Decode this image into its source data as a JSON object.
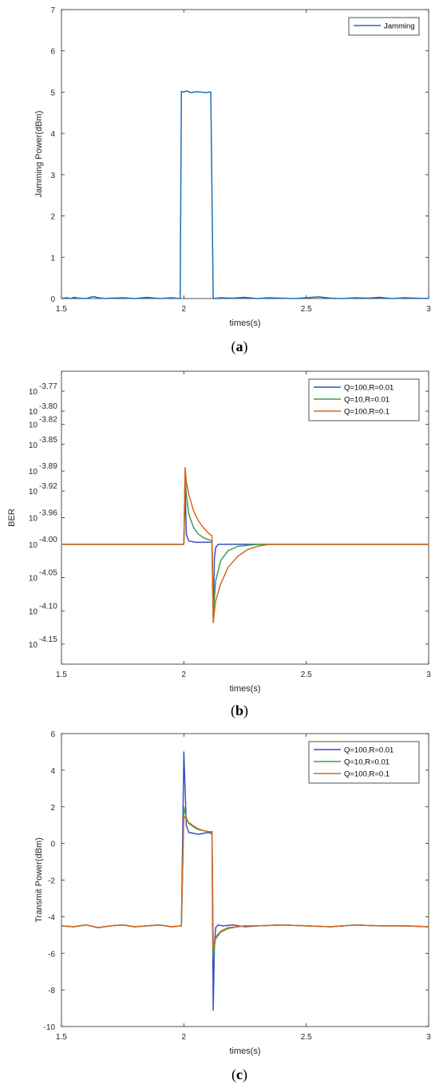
{
  "chart_data": [
    {
      "type": "line",
      "panel_label_paren_open": "(",
      "panel_label_letter": "a",
      "panel_label_paren_close": ")",
      "xlabel": "times(s)",
      "ylabel": "Jamming Power(dBm)",
      "xlim": [
        1.5,
        3
      ],
      "ylim": [
        0,
        7
      ],
      "xticks": [
        1.5,
        2,
        2.5,
        3
      ],
      "xtick_labels": [
        "1.5",
        "2",
        "2.5",
        "3"
      ],
      "yticks": [
        0,
        1,
        2,
        3,
        4,
        5,
        6,
        7
      ],
      "ytick_labels": [
        "0",
        "1",
        "2",
        "3",
        "4",
        "5",
        "6",
        "7"
      ],
      "legend_position": "top-right",
      "series": [
        {
          "name": "Jamming",
          "color": "#1f6fb4",
          "x": [
            1.5,
            1.52,
            1.54,
            1.55,
            1.57,
            1.6,
            1.63,
            1.65,
            1.68,
            1.7,
            1.75,
            1.8,
            1.85,
            1.9,
            1.95,
            1.985,
            1.99,
            2.0,
            2.01,
            2.03,
            2.05,
            2.07,
            2.09,
            2.1,
            2.11,
            2.12,
            2.15,
            2.2,
            2.25,
            2.3,
            2.35,
            2.4,
            2.45,
            2.5,
            2.55,
            2.6,
            2.65,
            2.7,
            2.75,
            2.8,
            2.85,
            2.9,
            2.95,
            3.0
          ],
          "y": [
            0.0,
            0.02,
            0.0,
            0.03,
            0.01,
            0.0,
            0.05,
            0.02,
            0.0,
            0.01,
            0.02,
            0.0,
            0.03,
            0.0,
            0.02,
            0.0,
            5.02,
            5.0,
            5.03,
            4.99,
            5.01,
            5.0,
            4.99,
            5.0,
            5.0,
            0.0,
            0.02,
            0.01,
            0.03,
            0.0,
            0.02,
            0.01,
            0.0,
            0.02,
            0.04,
            0.01,
            0.0,
            0.02,
            0.01,
            0.03,
            0.0,
            0.02,
            0.01,
            0.0
          ]
        }
      ]
    },
    {
      "type": "line",
      "panel_label_paren_open": "(",
      "panel_label_letter": "b",
      "panel_label_paren_close": ")",
      "xlabel": "times(s)",
      "ylabel": "BER",
      "xlim": [
        1.5,
        3
      ],
      "ylim": [
        -4.18,
        -3.74
      ],
      "ytick_base": "10",
      "xticks": [
        1.5,
        2,
        2.5,
        3
      ],
      "xtick_labels": [
        "1.5",
        "2",
        "2.5",
        "3"
      ],
      "yticks": [
        -3.77,
        -3.8,
        -3.82,
        -3.85,
        -3.89,
        -3.92,
        -3.96,
        -4.0,
        -4.05,
        -4.1,
        -4.15
      ],
      "ytick_labels": [
        "-3.77",
        "-3.80",
        "-3.82",
        "-3.85",
        "-3.89",
        "-3.92",
        "-3.96",
        "-4.00",
        "-4.05",
        "-4.10",
        "-4.15"
      ],
      "legend_position": "top-right",
      "series": [
        {
          "name": "Q=100,R=0.01",
          "color": "#3b4fc4",
          "x": [
            1.5,
            1.6,
            1.7,
            1.8,
            1.9,
            1.99,
            2.0,
            2.005,
            2.01,
            2.02,
            2.05,
            2.08,
            2.11,
            2.115,
            2.12,
            2.125,
            2.13,
            2.14,
            2.16,
            2.2,
            2.3,
            2.5,
            2.7,
            2.9,
            3.0
          ],
          "y": [
            -4.0,
            -4.0,
            -4.0,
            -4.0,
            -4.0,
            -4.0,
            -4.0,
            -3.91,
            -3.985,
            -3.995,
            -3.997,
            -3.997,
            -3.997,
            -3.997,
            -4.11,
            -4.02,
            -4.005,
            -4.0,
            -4.0,
            -4.0,
            -4.0,
            -4.0,
            -4.0,
            -4.0,
            -4.0
          ]
        },
        {
          "name": "Q=10,R=0.01",
          "color": "#3f9e4a",
          "x": [
            1.5,
            1.6,
            1.7,
            1.8,
            1.9,
            1.99,
            2.0,
            2.005,
            2.01,
            2.02,
            2.04,
            2.06,
            2.08,
            2.1,
            2.11,
            2.115,
            2.12,
            2.125,
            2.13,
            2.15,
            2.18,
            2.22,
            2.3,
            2.4,
            2.5,
            2.7,
            2.9,
            3.0
          ],
          "y": [
            -4.0,
            -4.0,
            -4.0,
            -4.0,
            -4.0,
            -4.0,
            -4.0,
            -3.895,
            -3.925,
            -3.955,
            -3.975,
            -3.985,
            -3.99,
            -3.993,
            -3.994,
            -3.994,
            -4.112,
            -4.08,
            -4.055,
            -4.025,
            -4.01,
            -4.003,
            -4.0,
            -4.0,
            -4.0,
            -4.0,
            -4.0,
            -4.0
          ]
        },
        {
          "name": "Q=100,R=0.1",
          "color": "#d9661f",
          "x": [
            1.5,
            1.6,
            1.7,
            1.8,
            1.9,
            1.99,
            2.0,
            2.005,
            2.01,
            2.02,
            2.04,
            2.06,
            2.08,
            2.1,
            2.11,
            2.115,
            2.12,
            2.125,
            2.13,
            2.15,
            2.18,
            2.22,
            2.26,
            2.3,
            2.35,
            2.4,
            2.5,
            2.7,
            2.9,
            3.0
          ],
          "y": [
            -4.0,
            -4.0,
            -4.0,
            -4.0,
            -4.0,
            -4.0,
            -4.0,
            -3.885,
            -3.905,
            -3.925,
            -3.95,
            -3.965,
            -3.975,
            -3.983,
            -3.986,
            -3.987,
            -4.118,
            -4.1,
            -4.085,
            -4.06,
            -4.035,
            -4.018,
            -4.008,
            -4.003,
            -4.0,
            -4.0,
            -4.0,
            -4.0,
            -4.0,
            -4.0
          ]
        }
      ]
    },
    {
      "type": "line",
      "panel_label_paren_open": "(",
      "panel_label_letter": "c",
      "panel_label_paren_close": ")",
      "xlabel": "times(s)",
      "ylabel": "Transmit Power(dBm)",
      "xlim": [
        1.5,
        3
      ],
      "ylim": [
        -10,
        6
      ],
      "xticks": [
        1.5,
        2,
        2.5,
        3
      ],
      "xtick_labels": [
        "1.5",
        "2",
        "2.5",
        "3"
      ],
      "yticks": [
        -10,
        -8,
        -6,
        -4,
        -2,
        0,
        2,
        4,
        6
      ],
      "ytick_labels": [
        "-10",
        "-8",
        "-6",
        "-4",
        "-2",
        "0",
        "2",
        "4",
        "6"
      ],
      "legend_position": "top-right",
      "series": [
        {
          "name": "Q=100,R=0.01",
          "color": "#3b4fc4",
          "x": [
            1.5,
            1.55,
            1.6,
            1.65,
            1.7,
            1.75,
            1.8,
            1.85,
            1.9,
            1.95,
            1.99,
            2.0,
            2.01,
            2.02,
            2.04,
            2.06,
            2.08,
            2.1,
            2.11,
            2.115,
            2.12,
            2.125,
            2.13,
            2.14,
            2.16,
            2.2,
            2.25,
            2.3,
            2.4,
            2.5,
            2.6,
            2.7,
            2.8,
            2.9,
            3.0
          ],
          "y": [
            -4.5,
            -4.55,
            -4.45,
            -4.6,
            -4.5,
            -4.45,
            -4.55,
            -4.5,
            -4.45,
            -4.55,
            -4.5,
            5.0,
            1.0,
            0.6,
            0.55,
            0.5,
            0.55,
            0.6,
            0.55,
            0.6,
            -9.1,
            -5.5,
            -4.6,
            -4.45,
            -4.5,
            -4.45,
            -4.55,
            -4.5,
            -4.45,
            -4.5,
            -4.55,
            -4.45,
            -4.5,
            -4.5,
            -4.55
          ]
        },
        {
          "name": "Q=10,R=0.01",
          "color": "#3f9e4a",
          "x": [
            1.5,
            1.55,
            1.6,
            1.65,
            1.7,
            1.75,
            1.8,
            1.85,
            1.9,
            1.95,
            1.99,
            2.0,
            2.01,
            2.02,
            2.04,
            2.06,
            2.08,
            2.1,
            2.11,
            2.115,
            2.12,
            2.125,
            2.13,
            2.15,
            2.18,
            2.22,
            2.25,
            2.3,
            2.4,
            2.5,
            2.6,
            2.7,
            2.8,
            2.9,
            3.0
          ],
          "y": [
            -4.5,
            -4.55,
            -4.45,
            -4.6,
            -4.5,
            -4.45,
            -4.55,
            -4.5,
            -4.45,
            -4.55,
            -4.5,
            2.0,
            1.4,
            1.1,
            0.9,
            0.75,
            0.7,
            0.65,
            0.65,
            0.65,
            -6.2,
            -5.6,
            -5.2,
            -4.85,
            -4.65,
            -4.55,
            -4.5,
            -4.5,
            -4.45,
            -4.5,
            -4.55,
            -4.45,
            -4.5,
            -4.5,
            -4.55
          ]
        },
        {
          "name": "Q=100,R=0.1",
          "color": "#d9661f",
          "x": [
            1.5,
            1.55,
            1.6,
            1.65,
            1.7,
            1.75,
            1.8,
            1.85,
            1.9,
            1.95,
            1.99,
            2.0,
            2.01,
            2.02,
            2.04,
            2.06,
            2.08,
            2.1,
            2.11,
            2.115,
            2.12,
            2.125,
            2.13,
            2.15,
            2.18,
            2.22,
            2.25,
            2.3,
            2.4,
            2.5,
            2.6,
            2.7,
            2.8,
            2.9,
            3.0
          ],
          "y": [
            -4.5,
            -4.55,
            -4.45,
            -4.6,
            -4.5,
            -4.45,
            -4.55,
            -4.5,
            -4.45,
            -4.55,
            -4.5,
            1.5,
            1.3,
            1.15,
            0.95,
            0.8,
            0.7,
            0.65,
            0.65,
            0.65,
            -5.8,
            -5.4,
            -5.1,
            -4.8,
            -4.6,
            -4.55,
            -4.5,
            -4.5,
            -4.45,
            -4.5,
            -4.55,
            -4.45,
            -4.5,
            -4.5,
            -4.55
          ]
        }
      ]
    }
  ]
}
